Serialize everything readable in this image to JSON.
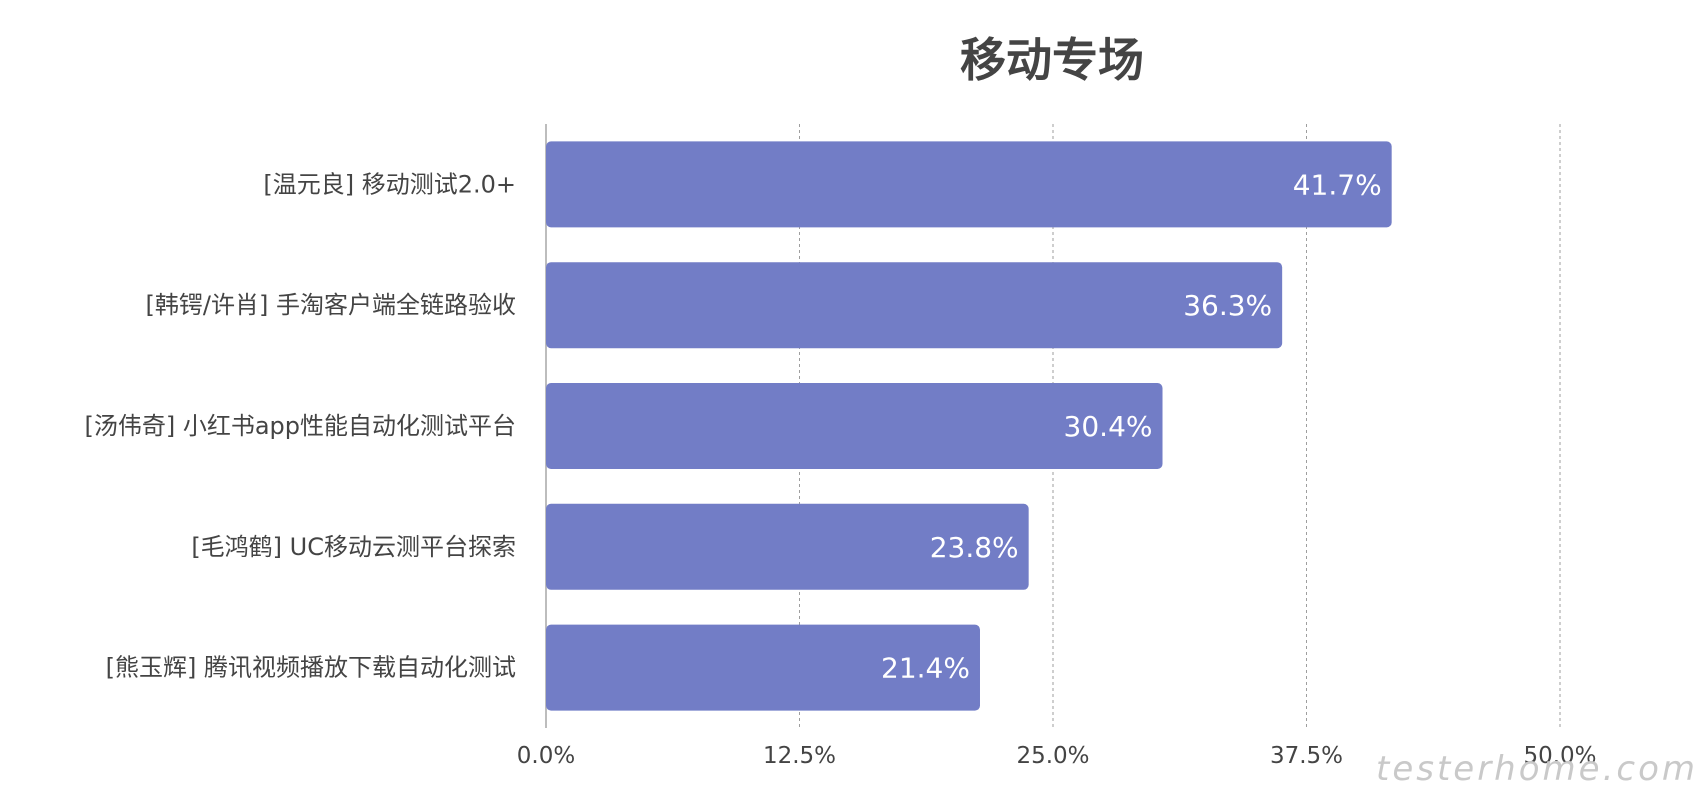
{
  "chart_data": {
    "type": "bar",
    "orientation": "horizontal",
    "title": "移动专场",
    "categories": [
      "[温元良] 移动测试2.0+",
      "[韩锷/许肖] 手淘客户端全链路验收",
      "[汤伟奇] 小红书app性能自动化测试平台",
      "[毛鸿鹤] UC移动云测平台探索",
      "[熊玉辉] 腾讯视频播放下载自动化测试"
    ],
    "values": [
      41.7,
      36.3,
      30.4,
      23.8,
      21.4
    ],
    "data_labels": [
      "41.7%",
      "36.3%",
      "30.4%",
      "23.8%",
      "21.4%"
    ],
    "xlim": [
      0,
      50
    ],
    "xticks": [
      0,
      12.5,
      25,
      37.5,
      50
    ],
    "xtick_labels": [
      "0.0%",
      "12.5%",
      "25.0%",
      "37.5%",
      "50.0%"
    ],
    "grid": "vertical-dashed",
    "legend": "none",
    "bar_color": "#727dc6"
  },
  "watermark": "testerhome.com"
}
